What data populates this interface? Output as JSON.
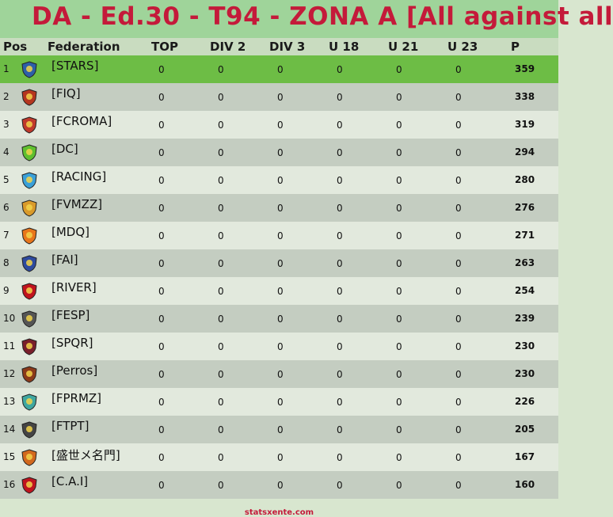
{
  "title": "DA - Ed.30 - T94 - ZONA A  [All against all",
  "columns": {
    "pos": "Pos",
    "federation": "Federation",
    "top": "TOP",
    "div2": "DIV 2",
    "div3": "DIV 3",
    "u18": "U 18",
    "u21": "U 21",
    "u23": "U 23",
    "p": "P"
  },
  "rows": [
    {
      "pos": "1",
      "name": "[STARS]",
      "top": "0",
      "div2": "0",
      "div3": "0",
      "u18": "0",
      "u21": "0",
      "u23": "0",
      "p": "359",
      "icon": "star-shield-icon",
      "color": "#2d5fa8"
    },
    {
      "pos": "2",
      "name": "[FIQ]",
      "top": "0",
      "div2": "0",
      "div3": "0",
      "u18": "0",
      "u21": "0",
      "u23": "0",
      "p": "338",
      "icon": "tiger-shield-icon",
      "color": "#b5361f"
    },
    {
      "pos": "3",
      "name": "[FCROMA]",
      "top": "0",
      "div2": "0",
      "div3": "0",
      "u18": "0",
      "u21": "0",
      "u23": "0",
      "p": "319",
      "icon": "roma-shield-icon",
      "color": "#c0392b"
    },
    {
      "pos": "4",
      "name": "[DC]",
      "top": "0",
      "div2": "0",
      "div3": "0",
      "u18": "0",
      "u21": "0",
      "u23": "0",
      "p": "294",
      "icon": "dc-shield-icon",
      "color": "#5fbf2f"
    },
    {
      "pos": "5",
      "name": "[RACING]",
      "top": "0",
      "div2": "0",
      "div3": "0",
      "u18": "0",
      "u21": "0",
      "u23": "0",
      "p": "280",
      "icon": "racing-badge-icon",
      "color": "#3aa0d8"
    },
    {
      "pos": "6",
      "name": "[FVMZZ]",
      "top": "0",
      "div2": "0",
      "div3": "0",
      "u18": "0",
      "u21": "0",
      "u23": "0",
      "p": "276",
      "icon": "crown-crest-icon",
      "color": "#d99a2b"
    },
    {
      "pos": "7",
      "name": "[MDQ]",
      "top": "0",
      "div2": "0",
      "div3": "0",
      "u18": "0",
      "u21": "0",
      "u23": "0",
      "p": "271",
      "icon": "sunset-emblem-icon",
      "color": "#e8761b"
    },
    {
      "pos": "8",
      "name": "[FAI]",
      "top": "0",
      "div2": "0",
      "div3": "0",
      "u18": "0",
      "u21": "0",
      "u23": "0",
      "p": "263",
      "icon": "fai-crest-icon",
      "color": "#2e4a9e"
    },
    {
      "pos": "9",
      "name": "[RIVER]",
      "top": "0",
      "div2": "0",
      "div3": "0",
      "u18": "0",
      "u21": "0",
      "u23": "0",
      "p": "254",
      "icon": "river-badge-icon",
      "color": "#c0141e"
    },
    {
      "pos": "10",
      "name": "[FESP]",
      "top": "0",
      "div2": "0",
      "div3": "0",
      "u18": "0",
      "u21": "0",
      "u23": "0",
      "p": "239",
      "icon": "fesp-badge-icon",
      "color": "#555555"
    },
    {
      "pos": "11",
      "name": "[SPQR]",
      "top": "0",
      "div2": "0",
      "div3": "0",
      "u18": "0",
      "u21": "0",
      "u23": "0",
      "p": "230",
      "icon": "eagle-crest-icon",
      "color": "#7a1f2b"
    },
    {
      "pos": "12",
      "name": "[Perros]",
      "top": "0",
      "div2": "0",
      "div3": "0",
      "u18": "0",
      "u21": "0",
      "u23": "0",
      "p": "230",
      "icon": "dog-shield-icon",
      "color": "#8b3a1a"
    },
    {
      "pos": "13",
      "name": "[FPRMZ]",
      "top": "0",
      "div2": "0",
      "div3": "0",
      "u18": "0",
      "u21": "0",
      "u23": "0",
      "p": "226",
      "icon": "globe-badge-icon",
      "color": "#3fa7a0"
    },
    {
      "pos": "14",
      "name": "[FTPT]",
      "top": "0",
      "div2": "0",
      "div3": "0",
      "u18": "0",
      "u21": "0",
      "u23": "0",
      "p": "205",
      "icon": "corinthians-badge-icon",
      "color": "#444444"
    },
    {
      "pos": "15",
      "name": "[盛世メ名門]",
      "top": "0",
      "div2": "0",
      "div3": "0",
      "u18": "0",
      "u21": "0",
      "u23": "0",
      "p": "167",
      "icon": "rocket-crest-icon",
      "color": "#d2691e"
    },
    {
      "pos": "16",
      "name": "[C.A.I]",
      "top": "0",
      "div2": "0",
      "div3": "0",
      "u18": "0",
      "u21": "0",
      "u23": "0",
      "p": "160",
      "icon": "cai-badge-icon",
      "color": "#c0141e"
    }
  ],
  "footer": "statsxente.com"
}
